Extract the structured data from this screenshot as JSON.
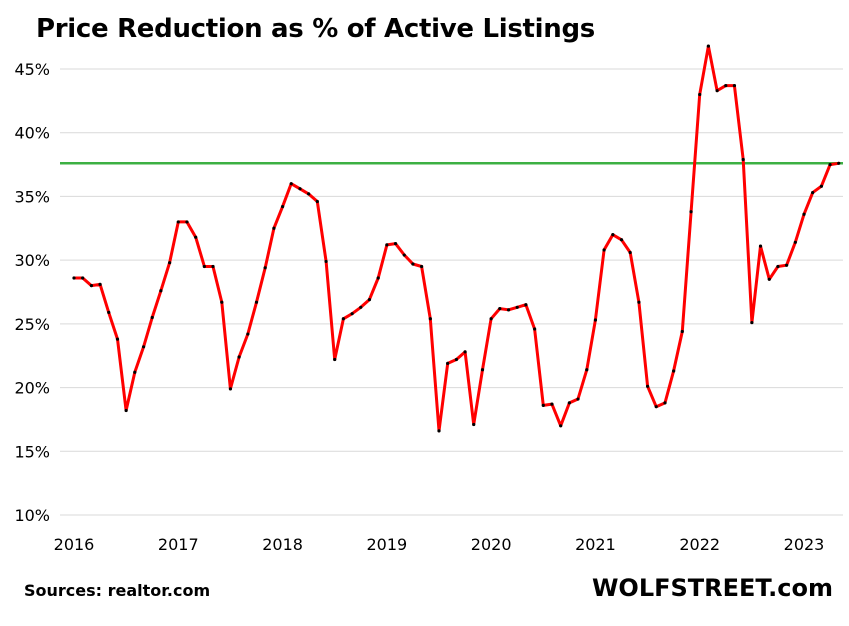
{
  "chart_data": {
    "type": "line",
    "title": "Price Reduction as % of Active Listings",
    "xlabel": "",
    "ylabel": "",
    "ylim": [
      10,
      47
    ],
    "y_ticks": [
      "10%",
      "15%",
      "20%",
      "25%",
      "30%",
      "35%",
      "40%",
      "45%"
    ],
    "y_tick_values": [
      10,
      15,
      20,
      25,
      30,
      35,
      40,
      45
    ],
    "x_ticks": [
      "2016",
      "2017",
      "2018",
      "2019",
      "2020",
      "2021",
      "2022",
      "2023"
    ],
    "x_tick_values": [
      2016,
      2017,
      2018,
      2019,
      2020,
      2021,
      2022,
      2023
    ],
    "grid": "horizontal",
    "reference_line": {
      "value": 37.6,
      "color": "#3cb043"
    },
    "series": [
      {
        "color": "#ff0000",
        "marker_color": "#000000",
        "points": [
          [
            2016.0,
            28.6
          ],
          [
            2016.083,
            28.6
          ],
          [
            2016.167,
            28.0
          ],
          [
            2016.25,
            28.1
          ],
          [
            2016.333,
            25.9
          ],
          [
            2016.417,
            23.8
          ],
          [
            2016.5,
            18.2
          ],
          [
            2016.583,
            21.2
          ],
          [
            2016.667,
            23.2
          ],
          [
            2016.75,
            25.5
          ],
          [
            2016.833,
            27.6
          ],
          [
            2016.917,
            29.8
          ],
          [
            2017.0,
            33.0
          ],
          [
            2017.083,
            33.0
          ],
          [
            2017.167,
            31.8
          ],
          [
            2017.25,
            29.5
          ],
          [
            2017.333,
            29.5
          ],
          [
            2017.417,
            26.7
          ],
          [
            2017.5,
            19.9
          ],
          [
            2017.583,
            22.4
          ],
          [
            2017.667,
            24.2
          ],
          [
            2017.75,
            26.7
          ],
          [
            2017.833,
            29.4
          ],
          [
            2017.917,
            32.5
          ],
          [
            2018.0,
            34.2
          ],
          [
            2018.083,
            36.0
          ],
          [
            2018.167,
            35.6
          ],
          [
            2018.25,
            35.2
          ],
          [
            2018.333,
            34.6
          ],
          [
            2018.417,
            29.9
          ],
          [
            2018.5,
            22.2
          ],
          [
            2018.583,
            25.4
          ],
          [
            2018.667,
            25.8
          ],
          [
            2018.75,
            26.3
          ],
          [
            2018.833,
            26.9
          ],
          [
            2018.917,
            28.6
          ],
          [
            2019.0,
            31.2
          ],
          [
            2019.083,
            31.3
          ],
          [
            2019.167,
            30.4
          ],
          [
            2019.25,
            29.7
          ],
          [
            2019.333,
            29.5
          ],
          [
            2019.417,
            25.4
          ],
          [
            2019.5,
            16.6
          ],
          [
            2019.583,
            21.9
          ],
          [
            2019.667,
            22.2
          ],
          [
            2019.75,
            22.8
          ],
          [
            2019.833,
            17.1
          ],
          [
            2019.917,
            21.4
          ],
          [
            2020.0,
            25.4
          ],
          [
            2020.083,
            26.2
          ],
          [
            2020.167,
            26.1
          ],
          [
            2020.25,
            26.3
          ],
          [
            2020.333,
            26.5
          ],
          [
            2020.417,
            24.6
          ],
          [
            2020.5,
            18.6
          ],
          [
            2020.583,
            18.7
          ],
          [
            2020.667,
            17.0
          ],
          [
            2020.75,
            18.8
          ],
          [
            2020.833,
            19.1
          ],
          [
            2020.917,
            21.4
          ],
          [
            2021.0,
            25.3
          ],
          [
            2021.083,
            30.8
          ],
          [
            2021.167,
            32.0
          ],
          [
            2021.25,
            31.6
          ],
          [
            2021.333,
            30.6
          ],
          [
            2021.417,
            26.7
          ],
          [
            2021.5,
            20.1
          ],
          [
            2021.583,
            18.5
          ],
          [
            2021.667,
            18.8
          ],
          [
            2021.75,
            21.3
          ],
          [
            2021.833,
            24.4
          ],
          [
            2021.917,
            33.8
          ],
          [
            2022.0,
            43.0
          ],
          [
            2022.083,
            46.8
          ],
          [
            2022.167,
            43.3
          ],
          [
            2022.25,
            43.7
          ],
          [
            2022.333,
            43.7
          ],
          [
            2022.417,
            37.9
          ],
          [
            2022.5,
            25.1
          ],
          [
            2022.583,
            31.1
          ],
          [
            2022.667,
            28.5
          ],
          [
            2022.75,
            29.5
          ],
          [
            2022.833,
            29.6
          ],
          [
            2022.917,
            31.4
          ],
          [
            2023.0,
            33.6
          ],
          [
            2023.083,
            35.3
          ],
          [
            2023.167,
            35.8
          ],
          [
            2023.25,
            37.5
          ],
          [
            2023.333,
            37.6
          ]
        ]
      }
    ]
  },
  "footer": {
    "source": "Sources: realtor.com",
    "brand": "WOLFSTREET.com"
  }
}
